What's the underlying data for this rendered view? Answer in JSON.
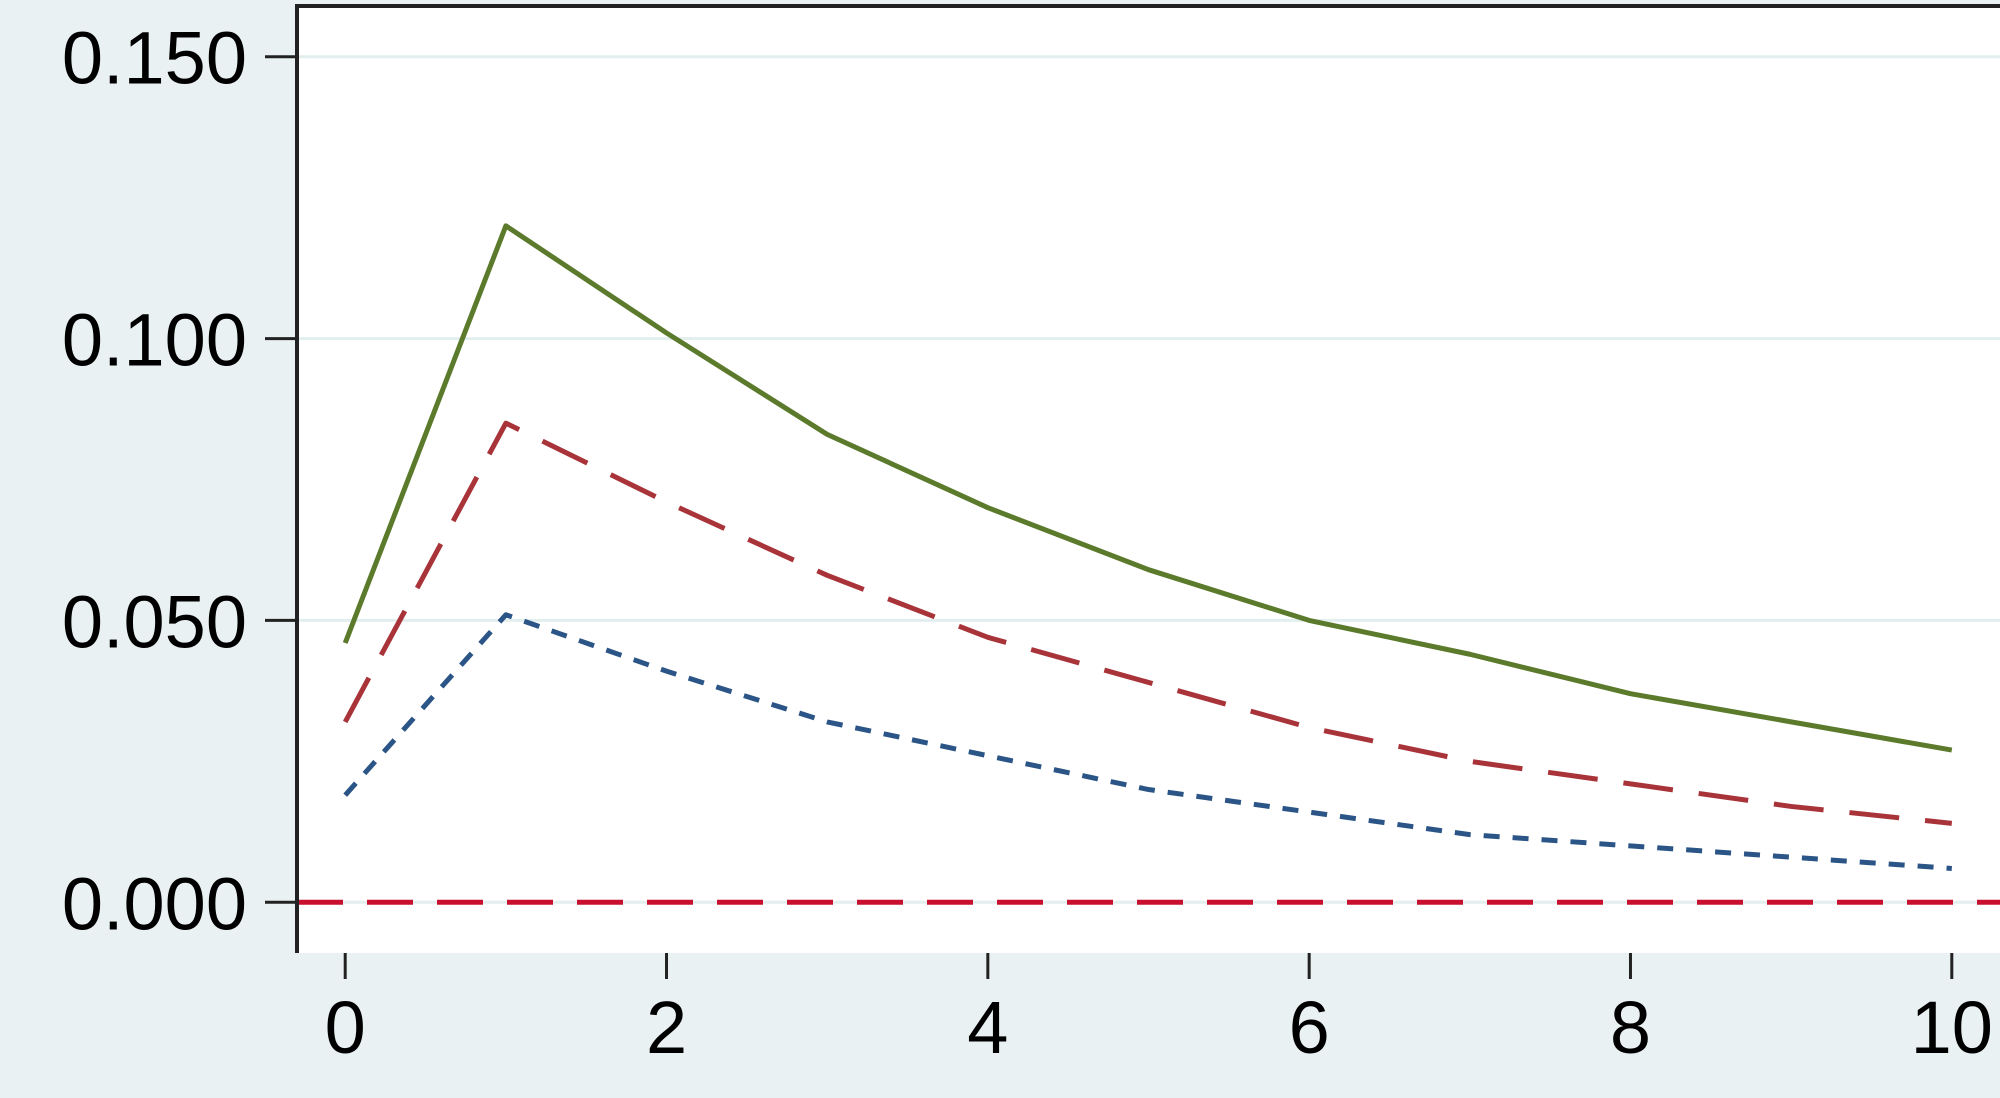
{
  "chart_data": {
    "type": "line",
    "x": [
      0,
      1,
      2,
      3,
      4,
      5,
      6,
      7,
      8,
      9,
      10
    ],
    "series": [
      {
        "color": "#5b7a2b",
        "dash": "solid",
        "values": [
          0.046,
          0.12,
          0.101,
          0.083,
          0.07,
          0.059,
          0.05,
          0.044,
          0.037,
          0.032,
          0.027
        ]
      },
      {
        "color": "#a8343a",
        "dash": "long",
        "values": [
          0.032,
          0.085,
          0.071,
          0.058,
          0.047,
          0.039,
          0.031,
          0.025,
          0.021,
          0.017,
          0.014
        ]
      },
      {
        "color": "#2b5586",
        "dash": "short",
        "values": [
          0.019,
          0.051,
          0.041,
          0.032,
          0.026,
          0.02,
          0.016,
          0.012,
          0.01,
          0.008,
          0.006
        ]
      }
    ],
    "reference_line": {
      "value": 0,
      "color": "#c8102e"
    },
    "xlim": [
      -0.3,
      10.3
    ],
    "ylim": [
      -0.009,
      0.159
    ],
    "xticks": [
      0,
      2,
      4,
      6,
      8,
      10
    ],
    "yticks": [
      {
        "value": 0,
        "label": "0.000"
      },
      {
        "value": 0.05,
        "label": "0.050"
      },
      {
        "value": 0.1,
        "label": "0.100"
      },
      {
        "value": 0.15,
        "label": "0.150"
      }
    ],
    "grid": true
  }
}
